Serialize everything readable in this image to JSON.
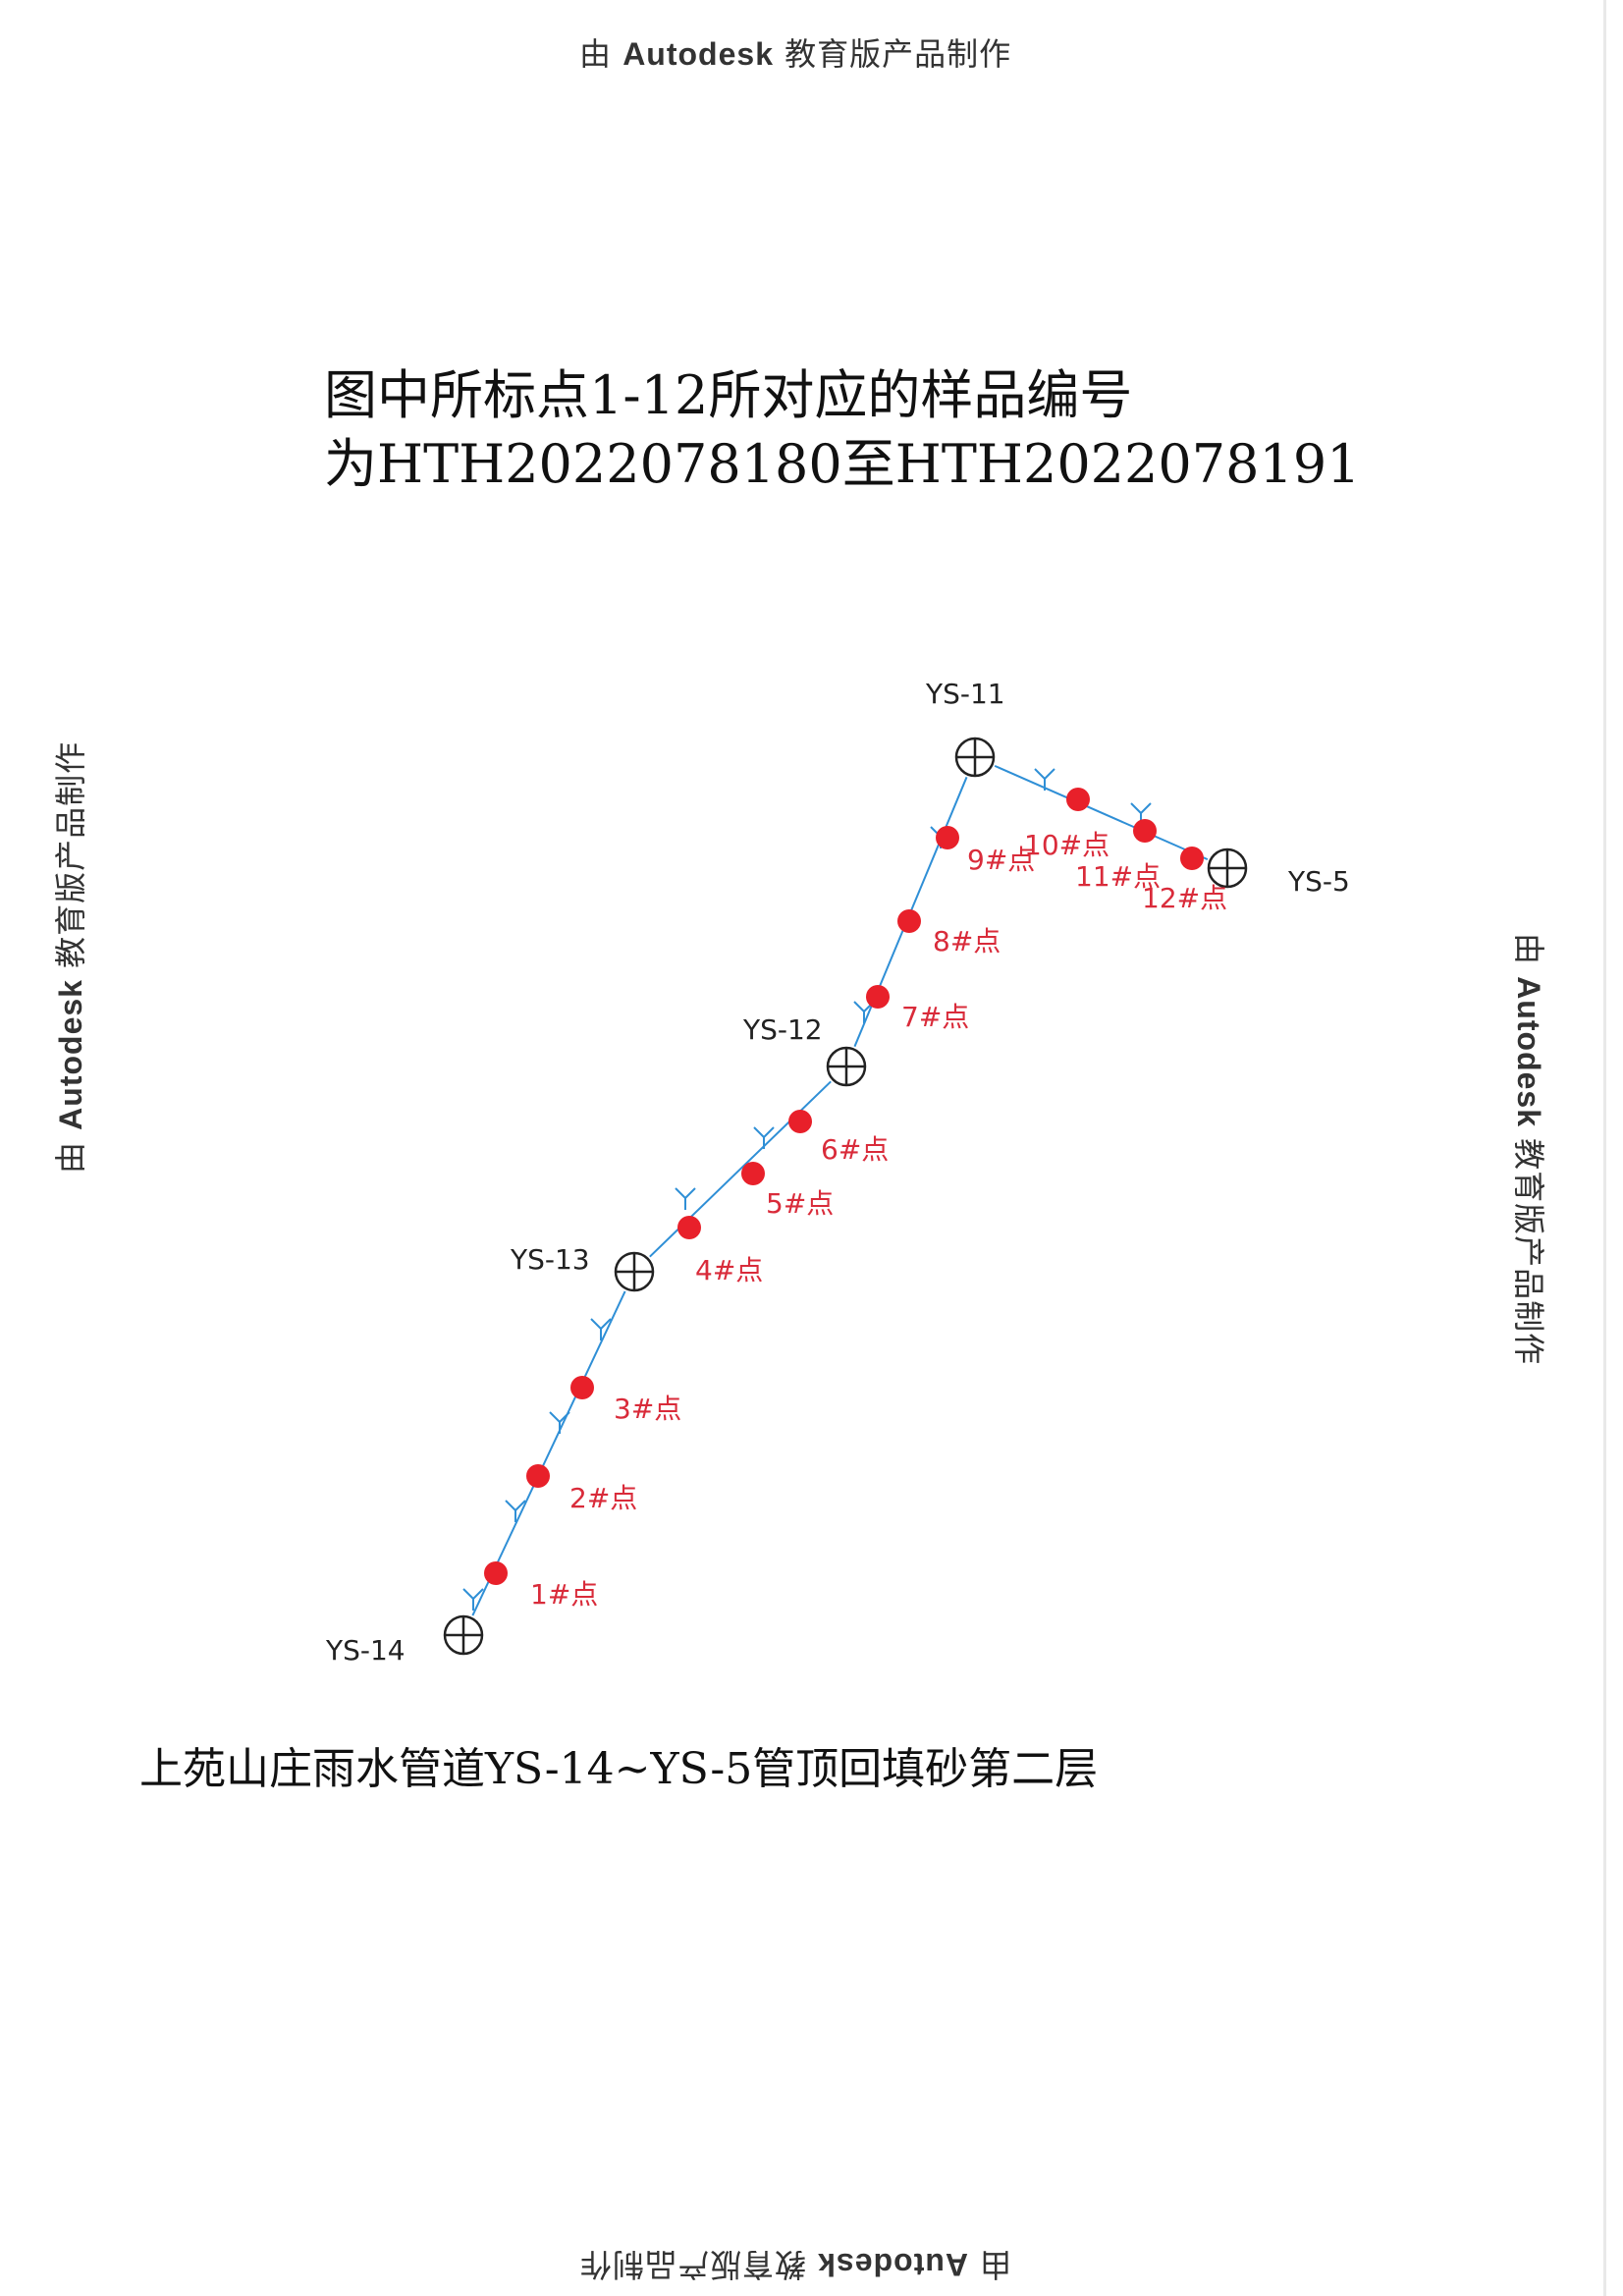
{
  "watermark": {
    "prefix": "由 ",
    "brand": "Autodesk",
    "suffix": " 教育版产品制作"
  },
  "heading": {
    "line1": "图中所标点1-12所对应的样品编号",
    "line2": "为HTH2022078180至HTH2022078191"
  },
  "manholes": [
    "YS-14",
    "YS-13",
    "YS-12",
    "YS-11",
    "YS-5"
  ],
  "sample_points": [
    "1#点",
    "2#点",
    "3#点",
    "4#点",
    "5#点",
    "6#点",
    "7#点",
    "8#点",
    "9#点",
    "10#点",
    "11#点",
    "12#点"
  ],
  "caption": "上苑山庄雨水管道YS-14~YS-5管顶回填砂第二层",
  "colors": {
    "pipe": "#2f8fd6",
    "point": "#e8202a",
    "point_label": "#d92b3a",
    "manhole": "#222222"
  }
}
